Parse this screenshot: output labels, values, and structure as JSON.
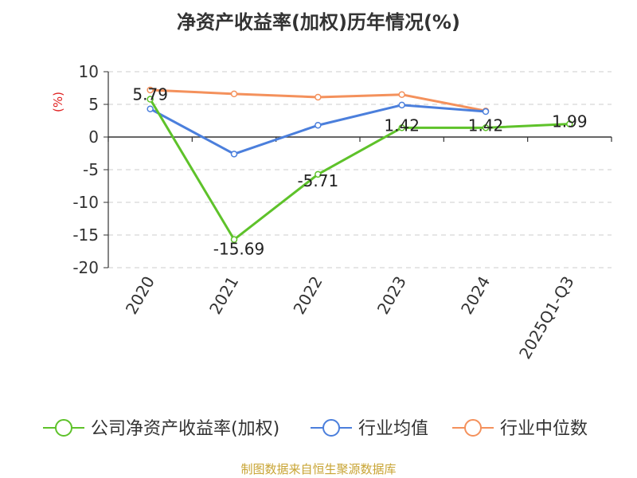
{
  "chart_data": {
    "type": "line",
    "title": "净资产收益率(加权)历年情况(%)",
    "ylabel": "(%)",
    "categories": [
      "2020",
      "2021",
      "2022",
      "2023",
      "2024",
      "2025Q1-Q3"
    ],
    "ylim": [
      -20,
      10
    ],
    "yticks": [
      10,
      5,
      0,
      -5,
      -10,
      -15,
      -20
    ],
    "grid": true,
    "legend_position": "bottom",
    "series": [
      {
        "name": "公司净资产收益率(加权)",
        "color": "#5ec22a",
        "values": [
          5.79,
          -15.69,
          -5.71,
          1.42,
          1.42,
          1.99
        ],
        "labels": [
          "5.79",
          "-15.69",
          "-5.71",
          "1.42",
          "1.42",
          "1.99"
        ]
      },
      {
        "name": "行业均值",
        "color": "#4b7fdc",
        "values": [
          4.3,
          -2.6,
          1.8,
          4.9,
          3.9,
          null
        ]
      },
      {
        "name": "行业中位数",
        "color": "#f4915c",
        "values": [
          7.2,
          6.6,
          6.1,
          6.5,
          4.0,
          null
        ]
      }
    ]
  },
  "source": "制图数据来自恒生聚源数据库"
}
